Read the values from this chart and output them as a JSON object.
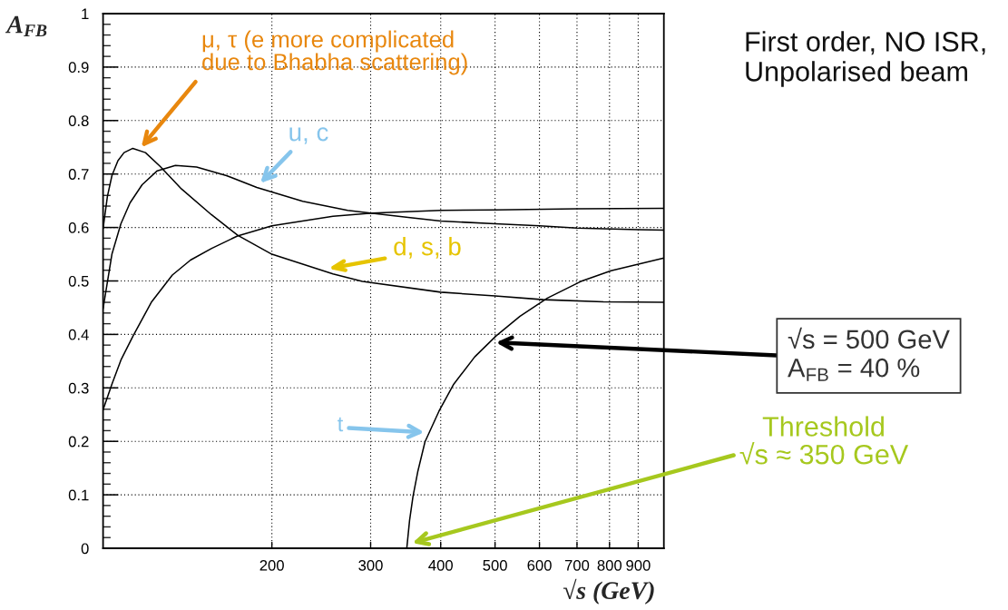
{
  "chart_data": {
    "type": "line",
    "xlabel": "√s (GeV)",
    "ylabel": "A$_{FB}$",
    "log": "x",
    "xlim": [
      100,
      1000
    ],
    "xticks": [
      200,
      300,
      400,
      500,
      600,
      700,
      800,
      900
    ],
    "ylim": [
      0,
      1
    ],
    "yticks": [
      0,
      {
        "value": 0.02,
        "label": null
      },
      {
        "value": 0.04,
        "label": null
      },
      {
        "value": 0.06,
        "label": null
      },
      {
        "value": 0.08,
        "label": null
      },
      0.1,
      {
        "value": 0.12,
        "label": null
      },
      {
        "value": 0.14,
        "label": null
      },
      {
        "value": 0.16,
        "label": null
      },
      {
        "value": 0.18,
        "label": null
      },
      0.2,
      {
        "value": 0.22,
        "label": null
      },
      {
        "value": 0.24,
        "label": null
      },
      {
        "value": 0.26,
        "label": null
      },
      {
        "value": 0.28,
        "label": null
      },
      0.3,
      {
        "value": 0.32,
        "label": null
      },
      {
        "value": 0.34,
        "label": null
      },
      {
        "value": 0.36,
        "label": null
      },
      {
        "value": 0.38,
        "label": null
      },
      0.4,
      {
        "value": 0.42,
        "label": null
      },
      {
        "value": 0.44,
        "label": null
      },
      {
        "value": 0.46,
        "label": null
      },
      {
        "value": 0.48,
        "label": null
      },
      0.5,
      {
        "value": 0.52,
        "label": null
      },
      {
        "value": 0.54,
        "label": null
      },
      {
        "value": 0.56,
        "label": null
      },
      {
        "value": 0.58,
        "label": null
      },
      0.6,
      {
        "value": 0.62,
        "label": null
      },
      {
        "value": 0.64,
        "label": null
      },
      {
        "value": 0.66,
        "label": null
      },
      {
        "value": 0.68,
        "label": null
      },
      0.7,
      {
        "value": 0.72,
        "label": null
      },
      {
        "value": 0.74,
        "label": null
      },
      {
        "value": 0.76,
        "label": null
      },
      {
        "value": 0.78,
        "label": null
      },
      0.8,
      {
        "value": 0.82,
        "label": null
      },
      {
        "value": 0.84,
        "label": null
      },
      {
        "value": 0.86,
        "label": null
      },
      {
        "value": 0.88,
        "label": null
      },
      0.9,
      {
        "value": 0.92,
        "label": null
      },
      {
        "value": 0.94,
        "label": null
      },
      {
        "value": 0.96,
        "label": null
      },
      {
        "value": 0.98,
        "label": null
      },
      1
    ],
    "grid": true,
    "series": [
      {
        "color": "#000000",
        "x": [
          100,
          101.8,
          103.7,
          106.3,
          109,
          113,
          119,
          126.5,
          138,
          156,
          174,
          200,
          257,
          290,
          400,
          500,
          610,
          780,
          1000
        ],
        "values": [
          0.598,
          0.658,
          0.697,
          0.725,
          0.74,
          0.748,
          0.74,
          0.714,
          0.672,
          0.624,
          0.585,
          0.55,
          0.513,
          0.499,
          0.479,
          0.472,
          0.465,
          0.461,
          0.46
        ]
      },
      {
        "color": "#000000",
        "x": [
          100,
          103.7,
          107.6,
          111.7,
          117.4,
          124.9,
          134.6,
          146.8,
          166,
          188,
          227,
          273,
          300,
          350,
          400,
          500,
          600,
          700,
          900,
          1000
        ],
        "values": [
          0.448,
          0.55,
          0.607,
          0.646,
          0.68,
          0.706,
          0.716,
          0.713,
          0.697,
          0.675,
          0.649,
          0.632,
          0.627,
          0.619,
          0.612,
          0.607,
          0.603,
          0.599,
          0.596,
          0.595
        ]
      },
      {
        "color": "#000000",
        "x": [
          100,
          103.7,
          107.6,
          113.1,
          121.9,
          132.9,
          143.2,
          156.2,
          173.6,
          200,
          257,
          302,
          400,
          500,
          700,
          1000
        ],
        "values": [
          0.259,
          0.307,
          0.352,
          0.397,
          0.46,
          0.511,
          0.539,
          0.561,
          0.584,
          0.603,
          0.621,
          0.627,
          0.632,
          0.633,
          0.635,
          0.636
        ]
      },
      {
        "color": "#000000",
        "x": [
          348,
          352,
          357,
          364,
          375,
          397,
          422,
          460,
          502,
          554,
          620,
          711,
          805,
          1000
        ],
        "values": [
          0,
          0.052,
          0.097,
          0.143,
          0.199,
          0.256,
          0.307,
          0.358,
          0.397,
          0.434,
          0.468,
          0.499,
          0.519,
          0.543
        ]
      }
    ],
    "annotations": [
      {
        "text": "μ, τ (e more complicated\ndue to Bhabha scattering)",
        "x": 117,
        "y": 0.75
      },
      {
        "text": "u, c",
        "x": 188,
        "y": 0.676
      },
      {
        "text": "d, s, b",
        "x": 252,
        "y": 0.523
      },
      {
        "text": "t",
        "x": 374,
        "y": 0.217
      },
      {
        "text": "√s = 500 GeV\nA$_{FB}$ = 40 %",
        "x": 502,
        "y": 0.385
      },
      {
        "text": "Threshold\n√s ≈ 350 GeV",
        "x": 356,
        "y": 0.01
      },
      "First order, NO ISR,\nUnpolarised beam"
    ]
  }
}
